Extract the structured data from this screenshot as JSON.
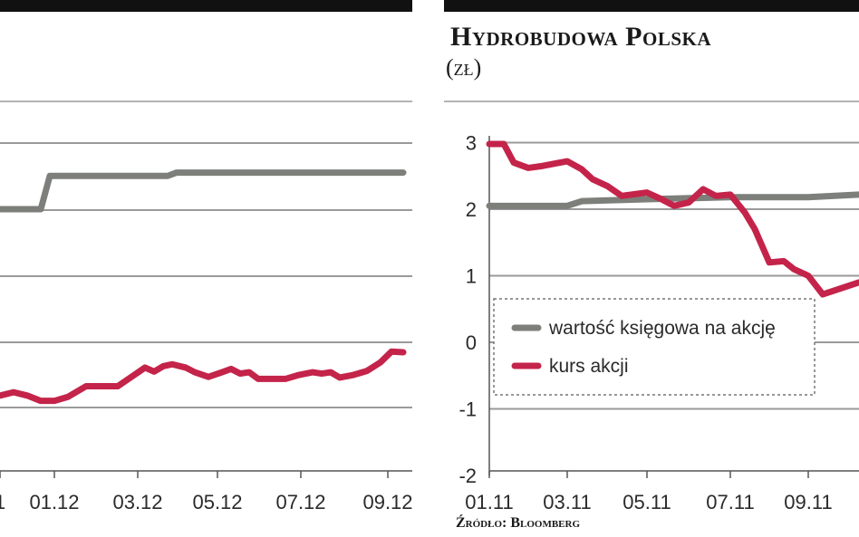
{
  "chart_data": [
    {
      "type": "line",
      "title": "",
      "x_ticks": [
        "1",
        "01.12",
        "03.12",
        "05.12",
        "07.12",
        "09.12"
      ],
      "series": [
        {
          "color": "#7d7f7a",
          "points": [
            [
              0,
              2.0
            ],
            [
              45,
              2.0
            ],
            [
              55,
              2.5
            ],
            [
              185,
              2.5
            ],
            [
              195,
              2.55
            ],
            [
              445,
              2.55
            ]
          ]
        },
        {
          "color": "#c4244a",
          "points": [
            [
              0,
              -0.8
            ],
            [
              15,
              -0.75
            ],
            [
              30,
              -0.8
            ],
            [
              45,
              -0.88
            ],
            [
              60,
              -0.88
            ],
            [
              75,
              -0.82
            ],
            [
              95,
              -0.66
            ],
            [
              110,
              -0.66
            ],
            [
              130,
              -0.66
            ],
            [
              145,
              -0.52
            ],
            [
              160,
              -0.38
            ],
            [
              170,
              -0.44
            ],
            [
              180,
              -0.36
            ],
            [
              190,
              -0.33
            ],
            [
              205,
              -0.38
            ],
            [
              215,
              -0.45
            ],
            [
              230,
              -0.52
            ],
            [
              245,
              -0.45
            ],
            [
              255,
              -0.4
            ],
            [
              265,
              -0.47
            ],
            [
              275,
              -0.45
            ],
            [
              285,
              -0.55
            ],
            [
              300,
              -0.55
            ],
            [
              315,
              -0.55
            ],
            [
              330,
              -0.49
            ],
            [
              345,
              -0.45
            ],
            [
              355,
              -0.47
            ],
            [
              365,
              -0.45
            ],
            [
              375,
              -0.53
            ],
            [
              390,
              -0.49
            ],
            [
              405,
              -0.43
            ],
            [
              420,
              -0.3
            ],
            [
              432,
              -0.14
            ],
            [
              445,
              -0.15
            ]
          ]
        }
      ]
    },
    {
      "type": "line",
      "title": "Hydrobudowa Polska",
      "unit": "(zł)",
      "x_ticks": [
        "01.11",
        "03.11",
        "05.11",
        "07.11",
        "09.11"
      ],
      "y_ticks": [
        "3",
        "2",
        "1",
        "0",
        "-1",
        "-2"
      ],
      "ylim": [
        -2,
        3
      ],
      "legend": {
        "position": "center-left",
        "entries": [
          "wartość księgowa na akcję",
          "kurs akcji"
        ]
      },
      "series": [
        {
          "name": "wartość księgowa na akcję",
          "color": "#7d7f7a",
          "points": [
            [
              "01.11",
              2.05
            ],
            [
              "03.11",
              2.05
            ],
            [
              "03.11+",
              2.12
            ],
            [
              "05.11",
              2.15
            ],
            [
              "07.11",
              2.18
            ],
            [
              "09.11",
              2.18
            ],
            [
              "end",
              2.22
            ]
          ]
        },
        {
          "name": "kurs akcji",
          "color": "#c4244a",
          "points": [
            [
              "01.11",
              2.98
            ],
            [
              "01.11+",
              2.98
            ],
            [
              "02.11-",
              2.7
            ],
            [
              "02.11",
              2.62
            ],
            [
              "02.11+",
              2.65
            ],
            [
              "03.11-",
              2.68
            ],
            [
              "03.11",
              2.72
            ],
            [
              "03.11+",
              2.6
            ],
            [
              "04.11-",
              2.45
            ],
            [
              "04.11",
              2.35
            ],
            [
              "04.11+",
              2.2
            ],
            [
              "05.11",
              2.25
            ],
            [
              "05.11+",
              2.15
            ],
            [
              "06.11-",
              2.05
            ],
            [
              "06.11",
              2.1
            ],
            [
              "06.11+",
              2.3
            ],
            [
              "07.11-",
              2.2
            ],
            [
              "07.11",
              2.22
            ],
            [
              "07.11+",
              1.95
            ],
            [
              "08.11-",
              1.7
            ],
            [
              "08.11",
              1.2
            ],
            [
              "08.11+",
              1.22
            ],
            [
              "09.11-",
              1.1
            ],
            [
              "09.11",
              1.0
            ],
            [
              "09.11+",
              0.72
            ],
            [
              "end",
              0.9
            ]
          ]
        }
      ]
    }
  ],
  "source": "Źródło: Bloomberg"
}
